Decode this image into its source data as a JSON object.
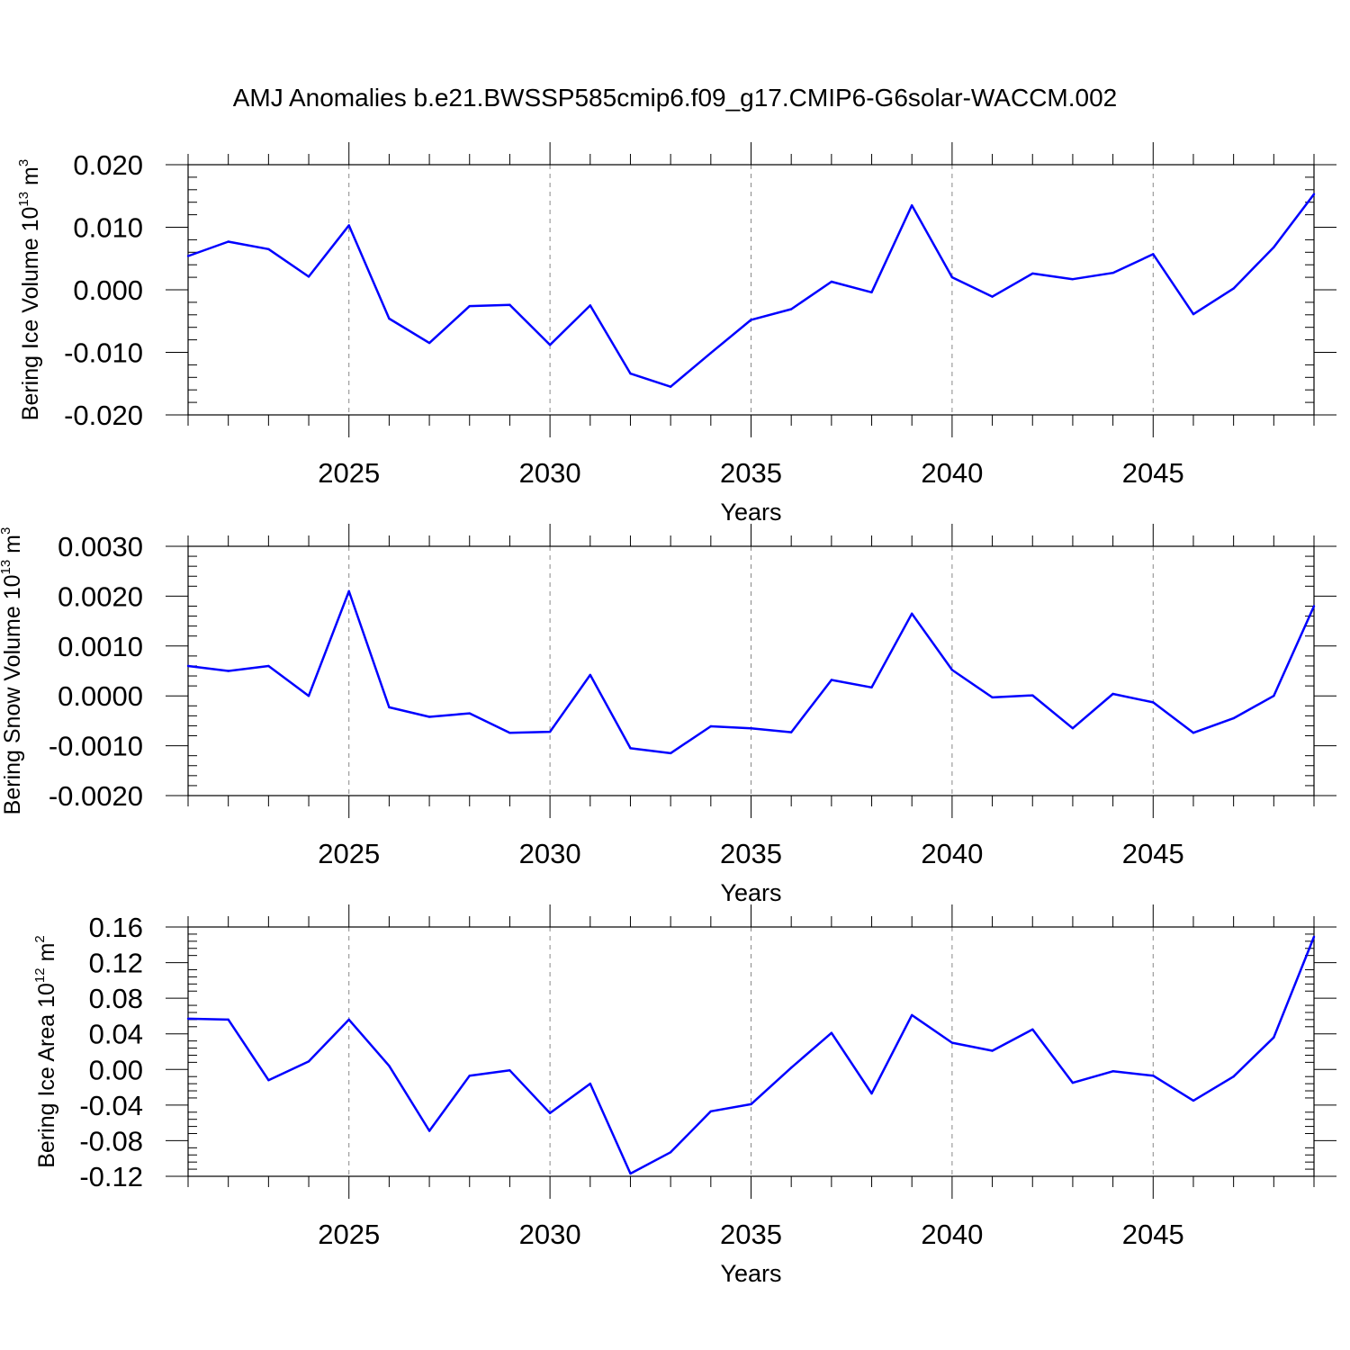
{
  "chart_data": [
    {
      "type": "line",
      "title": "AMJ Anomalies b.e21.BWSSP585cmip6.f09_g17.CMIP6-G6solar-WACCM.002",
      "ylabel": "Bering Ice Volume 10",
      "ylabel_exp": "13",
      "ylabel_unit": " m",
      "ylabel_unit_exp": "3",
      "xlabel": "Years",
      "xlim": [
        2021,
        2049
      ],
      "ylim": [
        -0.02,
        0.02
      ],
      "yticks": [
        -0.02,
        -0.01,
        0.0,
        0.01,
        0.02
      ],
      "ytick_labels": [
        "-0.020",
        "-0.010",
        "0.000",
        "0.010",
        "0.020"
      ],
      "xticks": [
        2025,
        2030,
        2035,
        2040,
        2045
      ],
      "xtick_labels": [
        "2025",
        "2030",
        "2035",
        "2040",
        "2045"
      ],
      "line_color": "#0000ff",
      "x": [
        2021,
        2022,
        2023,
        2024,
        2025,
        2026,
        2027,
        2028,
        2029,
        2030,
        2031,
        2032,
        2033,
        2034,
        2035,
        2036,
        2037,
        2038,
        2039,
        2040,
        2041,
        2042,
        2043,
        2044,
        2045,
        2046,
        2047,
        2048,
        2049
      ],
      "values": [
        0.0054,
        0.0077,
        0.0065,
        0.0021,
        0.0103,
        -0.0046,
        -0.0085,
        -0.0026,
        -0.0024,
        -0.0088,
        -0.0025,
        -0.0134,
        -0.0155,
        -0.0101,
        -0.0048,
        -0.0031,
        0.0013,
        -0.0004,
        0.0135,
        0.002,
        -0.0011,
        0.0026,
        0.0017,
        0.0027,
        0.0057,
        -0.0039,
        0.0002,
        0.0068,
        0.0153
      ]
    },
    {
      "type": "line",
      "ylabel": "Bering Snow Volume 10",
      "ylabel_exp": "13",
      "ylabel_unit": " m",
      "ylabel_unit_exp": "3",
      "xlabel": "Years",
      "xlim": [
        2021,
        2049
      ],
      "ylim": [
        -0.002,
        0.003
      ],
      "yticks": [
        -0.002,
        -0.001,
        0.0,
        0.001,
        0.002,
        0.003
      ],
      "ytick_labels": [
        "-0.0020",
        "-0.0010",
        "0.0000",
        "0.0010",
        "0.0020",
        "0.0030"
      ],
      "xticks": [
        2025,
        2030,
        2035,
        2040,
        2045
      ],
      "xtick_labels": [
        "2025",
        "2030",
        "2035",
        "2040",
        "2045"
      ],
      "line_color": "#0000ff",
      "x": [
        2021,
        2022,
        2023,
        2024,
        2025,
        2026,
        2027,
        2028,
        2029,
        2030,
        2031,
        2032,
        2033,
        2034,
        2035,
        2036,
        2037,
        2038,
        2039,
        2040,
        2041,
        2042,
        2043,
        2044,
        2045,
        2046,
        2047,
        2048,
        2049
      ],
      "values": [
        0.0006,
        0.0005,
        0.0006,
        0.0,
        0.0021,
        -0.00023,
        -0.00042,
        -0.00035,
        -0.00074,
        -0.00072,
        0.00042,
        -0.00105,
        -0.00115,
        -0.00061,
        -0.00065,
        -0.00073,
        0.00032,
        0.00017,
        0.00165,
        0.00052,
        -3e-05,
        1e-05,
        -0.00065,
        4e-05,
        -0.00013,
        -0.00074,
        -0.00045,
        0.0,
        0.0018
      ]
    },
    {
      "type": "line",
      "ylabel": "Bering Ice Area 10",
      "ylabel_exp": "12",
      "ylabel_unit": " m",
      "ylabel_unit_exp": "2",
      "xlabel": "Years",
      "xlim": [
        2021,
        2049
      ],
      "ylim": [
        -0.12,
        0.16
      ],
      "yticks": [
        -0.12,
        -0.08,
        -0.04,
        0.0,
        0.04,
        0.08,
        0.12,
        0.16
      ],
      "ytick_labels": [
        "-0.12",
        "-0.08",
        "-0.04",
        "0.00",
        "0.04",
        "0.08",
        "0.12",
        "0.16"
      ],
      "xticks": [
        2025,
        2030,
        2035,
        2040,
        2045
      ],
      "xtick_labels": [
        "2025",
        "2030",
        "2035",
        "2040",
        "2045"
      ],
      "line_color": "#0000ff",
      "x": [
        2021,
        2022,
        2023,
        2024,
        2025,
        2026,
        2027,
        2028,
        2029,
        2030,
        2031,
        2032,
        2033,
        2034,
        2035,
        2036,
        2037,
        2038,
        2039,
        2040,
        2041,
        2042,
        2043,
        2044,
        2045,
        2046,
        2047,
        2048,
        2049
      ],
      "values": [
        0.057,
        0.056,
        -0.012,
        0.009,
        0.056,
        0.004,
        -0.069,
        -0.007,
        -0.001,
        -0.049,
        -0.016,
        -0.117,
        -0.093,
        -0.047,
        -0.039,
        0.002,
        0.041,
        -0.027,
        0.061,
        0.03,
        0.021,
        0.045,
        -0.015,
        -0.002,
        -0.007,
        -0.035,
        -0.008,
        0.036,
        0.149
      ]
    }
  ]
}
